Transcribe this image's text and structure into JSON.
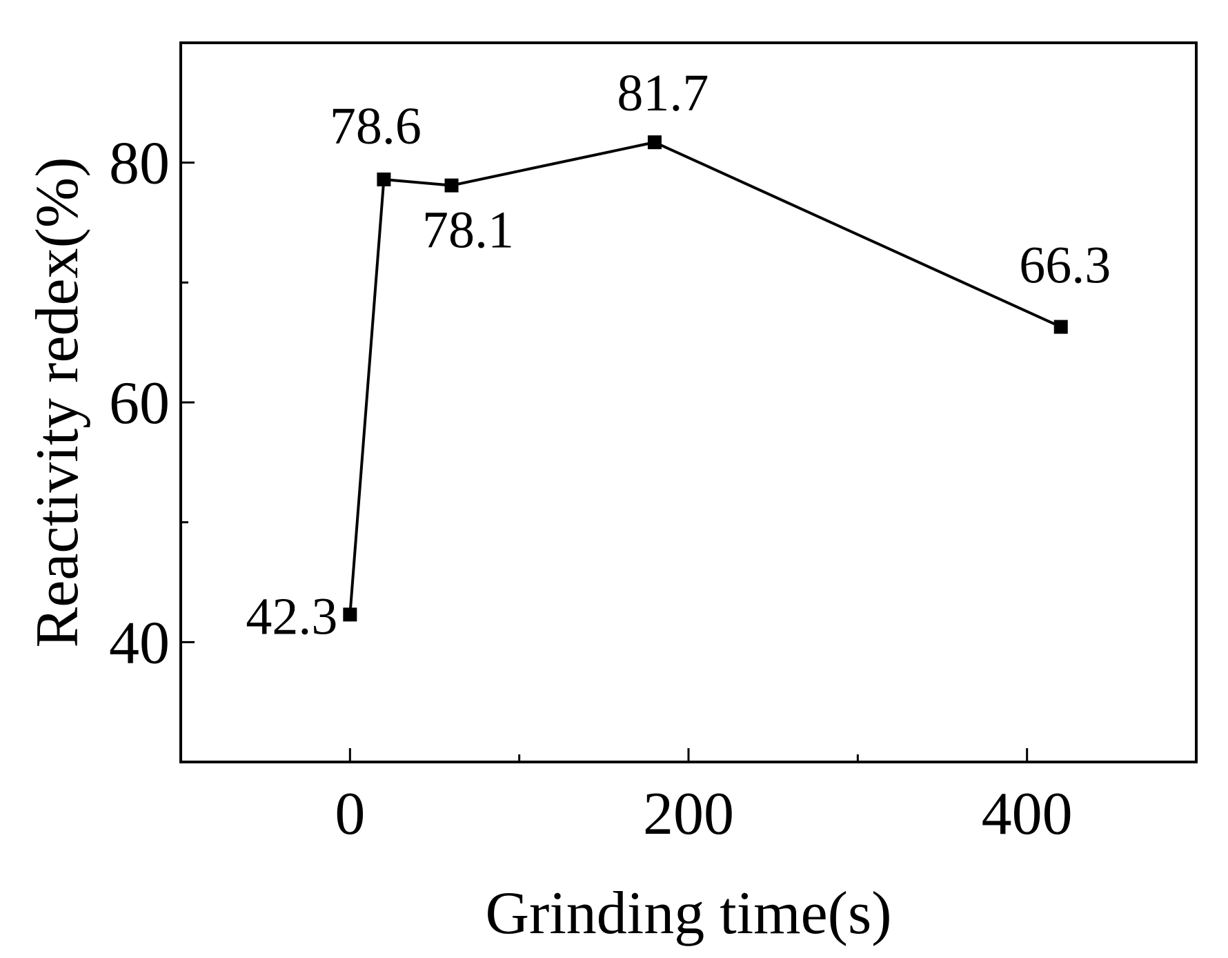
{
  "chart_data": {
    "type": "line",
    "title": "",
    "xlabel": "Grinding time(s)",
    "ylabel": "Reactivity redex(%)",
    "xlim": [
      -100,
      500
    ],
    "ylim": [
      30,
      90
    ],
    "x_ticks": [
      0,
      200,
      400
    ],
    "x_tick_labels": [
      "0",
      "200",
      "400"
    ],
    "x_minor_ticks": [
      100,
      300
    ],
    "y_ticks": [
      40,
      60,
      80
    ],
    "y_tick_labels": [
      "40",
      "60",
      "80"
    ],
    "y_minor_ticks": [
      50,
      70
    ],
    "grid": false,
    "marker": "square",
    "series": [
      {
        "x": [
          0,
          20,
          60,
          180,
          420
        ],
        "values": [
          42.3,
          78.6,
          78.1,
          81.7,
          66.3
        ],
        "labels": [
          "42.3",
          "78.6",
          "78.1",
          "81.7",
          "66.3"
        ],
        "color": "#000000"
      }
    ]
  }
}
